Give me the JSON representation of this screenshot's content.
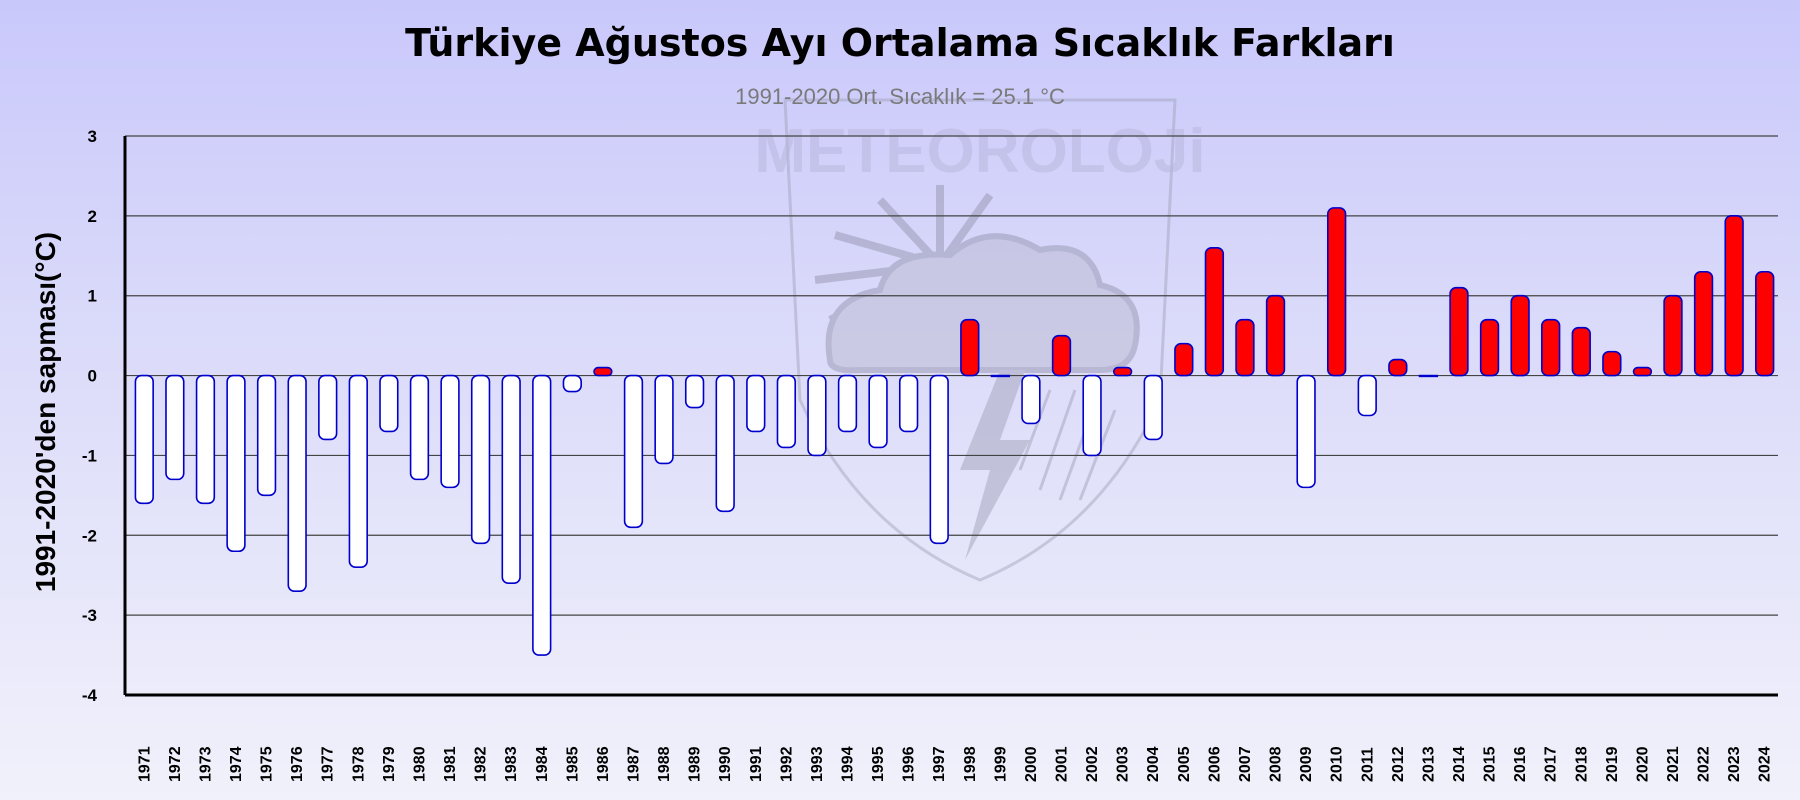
{
  "chart_data": {
    "type": "bar",
    "title": "Türkiye Ağustos Ayı Ortalama Sıcaklık Farkları",
    "subtitle": "1991-2020 Ort. Sıcaklık = 25.1 °C",
    "ylabel": "1991-2020'den sapması(°C)",
    "xlabel": "",
    "ylim": [
      -4,
      3
    ],
    "yticks": [
      "3",
      "2",
      "1",
      "0",
      "-1",
      "-2",
      "-3",
      "-4"
    ],
    "grid": true,
    "positive_color": "#ff0000",
    "negative_color": "#ffffff",
    "bar_border_color": "#0000cc",
    "categories": [
      "1971",
      "1972",
      "1973",
      "1974",
      "1975",
      "1976",
      "1977",
      "1978",
      "1979",
      "1980",
      "1981",
      "1982",
      "1983",
      "1984",
      "1985",
      "1986",
      "1987",
      "1988",
      "1989",
      "1990",
      "1991",
      "1992",
      "1993",
      "1994",
      "1995",
      "1996",
      "1997",
      "1998",
      "1999",
      "2000",
      "2001",
      "2002",
      "2003",
      "2004",
      "2005",
      "2006",
      "2007",
      "2008",
      "2009",
      "2010",
      "2011",
      "2012",
      "2013",
      "2014",
      "2015",
      "2016",
      "2017",
      "2018",
      "2019",
      "2020",
      "2021",
      "2022",
      "2023",
      "2024"
    ],
    "values": [
      -1.6,
      -1.3,
      -1.6,
      -2.2,
      -1.5,
      -2.7,
      -0.8,
      -2.4,
      -0.7,
      -1.3,
      -1.4,
      -2.1,
      -2.6,
      -3.5,
      -0.2,
      0.1,
      -1.9,
      -1.1,
      -0.4,
      -1.7,
      -0.7,
      -0.9,
      -1.0,
      -0.7,
      -0.9,
      -0.7,
      -2.1,
      0.7,
      0.0,
      -0.6,
      0.5,
      -1.0,
      0.1,
      -0.8,
      0.4,
      1.6,
      0.7,
      1.0,
      -1.4,
      2.1,
      -0.5,
      0.2,
      0.0,
      1.1,
      0.7,
      1.0,
      0.7,
      0.6,
      0.3,
      0.1,
      1.0,
      1.3,
      2.0,
      1.3
    ]
  },
  "watermark": {
    "text": "METEOROLOJi",
    "icon": "meteoroloji-shield-logo"
  }
}
